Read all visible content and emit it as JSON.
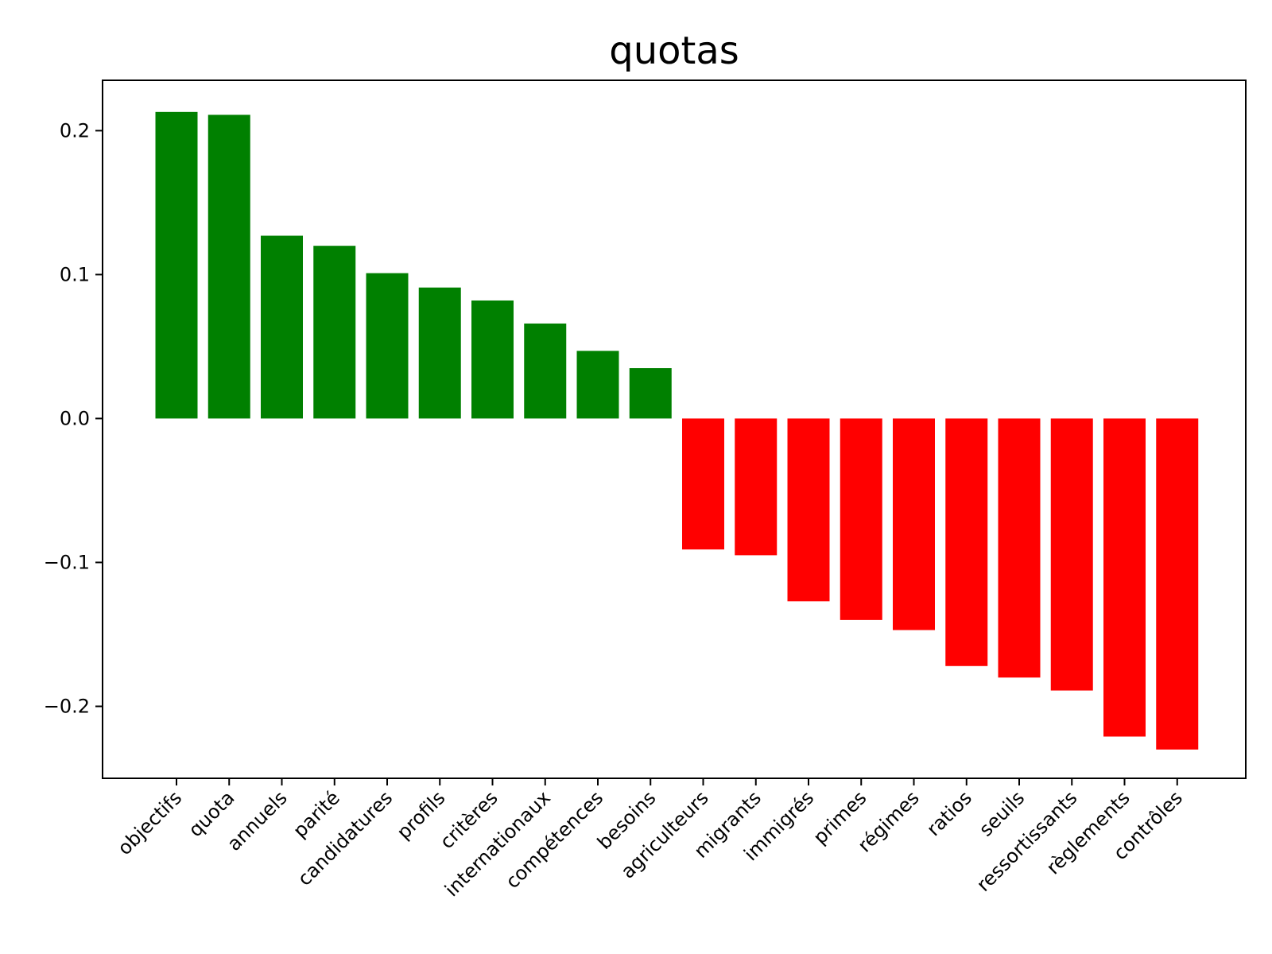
{
  "chart_data": {
    "type": "bar",
    "title": "quotas",
    "xlabel": "",
    "ylabel": "",
    "ylim": [
      -0.25,
      0.235
    ],
    "yticks": [
      -0.2,
      -0.1,
      0.0,
      0.1,
      0.2
    ],
    "ytick_labels": [
      "−0.2",
      "−0.1",
      "0.0",
      "0.1",
      "0.2"
    ],
    "grid": false,
    "legend": "none",
    "colors": {
      "positive": "#008000",
      "negative": "#ff0000"
    },
    "categories": [
      "objectifs",
      "quota",
      "annuels",
      "parité",
      "candidatures",
      "profils",
      "critères",
      "internationaux",
      "compétences",
      "besoins",
      "agriculteurs",
      "migrants",
      "immigrés",
      "primes",
      "régimes",
      "ratios",
      "seuils",
      "ressortissants",
      "règlements",
      "contrôles"
    ],
    "values": [
      0.213,
      0.211,
      0.127,
      0.12,
      0.101,
      0.091,
      0.082,
      0.066,
      0.047,
      0.035,
      -0.091,
      -0.095,
      -0.127,
      -0.14,
      -0.147,
      -0.172,
      -0.18,
      -0.189,
      -0.221,
      -0.23
    ]
  }
}
